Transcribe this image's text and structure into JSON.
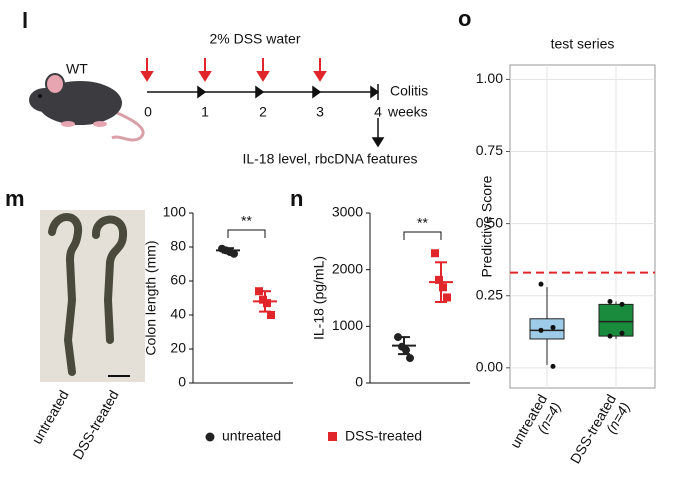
{
  "panel_labels": [
    "l",
    "m",
    "n",
    "o"
  ],
  "timeline": {
    "subject": "WT",
    "treatment": "2% DSS water",
    "week_labels": [
      "0",
      "1",
      "2",
      "3",
      "4"
    ],
    "unit": "weeks",
    "end_label": "Colitis",
    "readout": "IL-18 level, rbcDNA features"
  },
  "photo": {
    "labels": [
      "untreated",
      "DSS-treated"
    ]
  },
  "chart_data": [
    {
      "type": "dot",
      "ylabel": "Colon length (mm)",
      "ylim": [
        0,
        100
      ],
      "yticks": [
        0,
        20,
        40,
        60,
        80,
        100
      ],
      "significance": "**",
      "series": [
        {
          "name": "untreated",
          "color": "#222222",
          "marker": "circle",
          "values": [
            79,
            78,
            77,
            76
          ],
          "mean": 78,
          "sd": 1.3
        },
        {
          "name": "DSS-treated",
          "color": "#e0262b",
          "marker": "square",
          "values": [
            54,
            49,
            47,
            40
          ],
          "mean": 48,
          "sd": 6
        }
      ]
    },
    {
      "type": "dot",
      "ylabel": "IL-18 (pg/mL)",
      "ylim": [
        0,
        3000
      ],
      "yticks": [
        0,
        1000,
        2000,
        3000
      ],
      "significance": "**",
      "series": [
        {
          "color": "#222222",
          "marker": "circle",
          "values": [
            810,
            640,
            580,
            440
          ],
          "mean": 660,
          "sd": 150
        },
        {
          "color": "#e0262b",
          "marker": "square",
          "values": [
            2290,
            1820,
            1690,
            1510
          ],
          "mean": 1780,
          "sd": 350
        }
      ]
    },
    {
      "type": "box",
      "title": "test series",
      "ylabel": "Predictive Score",
      "ylim": [
        -0.07,
        1.05
      ],
      "yticks": [
        {
          "value": 0,
          "label": "0.00"
        },
        {
          "value": 0.25,
          "label": "0.25"
        },
        {
          "value": 0.5,
          "label": "0.50"
        },
        {
          "value": 0.75,
          "label": "0.75"
        },
        {
          "value": 1,
          "label": "1.00"
        }
      ],
      "threshold": 0.33,
      "threshold_color": "#e0262b",
      "grid": true,
      "categories": [
        "untreated",
        "DSS-treated"
      ],
      "n_labels": [
        "(n=4)",
        "(n=4)"
      ],
      "series": [
        {
          "color": "#9dcbe8",
          "whisker_low": 0.01,
          "q1": 0.1,
          "median": 0.13,
          "q3": 0.17,
          "whisker_high": 0.28,
          "points": [
            0.29,
            0.14,
            0.13,
            0.005
          ]
        },
        {
          "color": "#1a8a3c",
          "whisker_low": 0.1,
          "q1": 0.11,
          "median": 0.16,
          "q3": 0.22,
          "whisker_high": 0.23,
          "points": [
            0.23,
            0.22,
            0.11,
            0.12
          ]
        }
      ]
    }
  ]
}
